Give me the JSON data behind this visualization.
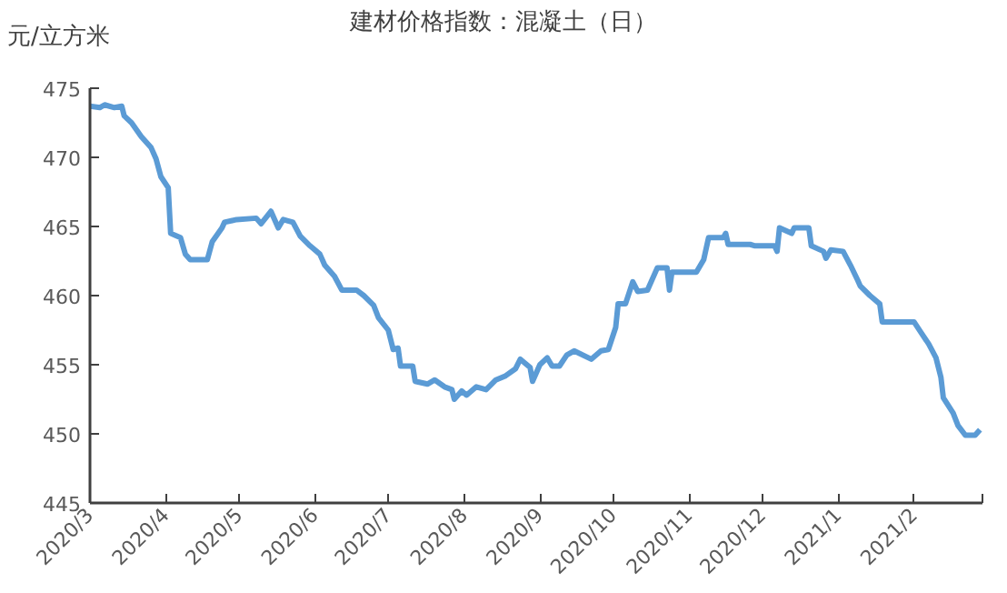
{
  "chart_data": {
    "type": "line",
    "title": "建材价格指数：混凝土（日）",
    "ylabel": "元/立方米",
    "x": [
      "2020-03-01",
      "2020-03-05",
      "2020-03-07",
      "2020-03-11",
      "2020-03-14",
      "2020-03-15",
      "2020-03-18",
      "2020-03-22",
      "2020-03-26",
      "2020-03-28",
      "2020-03-30",
      "2020-04-02",
      "2020-04-03",
      "2020-04-07",
      "2020-04-09",
      "2020-04-11",
      "2020-04-18",
      "2020-04-20",
      "2020-04-24",
      "2020-04-25",
      "2020-04-30",
      "2020-05-08",
      "2020-05-10",
      "2020-05-14",
      "2020-05-17",
      "2020-05-19",
      "2020-05-23",
      "2020-05-26",
      "2020-05-30",
      "2020-06-03",
      "2020-06-05",
      "2020-06-09",
      "2020-06-12",
      "2020-06-18",
      "2020-06-21",
      "2020-06-25",
      "2020-06-27",
      "2020-07-01",
      "2020-07-03",
      "2020-07-05",
      "2020-07-06",
      "2020-07-11",
      "2020-07-12",
      "2020-07-17",
      "2020-07-20",
      "2020-07-24",
      "2020-07-27",
      "2020-07-28",
      "2020-07-31",
      "2020-08-02",
      "2020-08-06",
      "2020-08-10",
      "2020-08-14",
      "2020-08-18",
      "2020-08-22",
      "2020-08-24",
      "2020-08-28",
      "2020-08-29",
      "2020-09-01",
      "2020-09-04",
      "2020-09-06",
      "2020-09-09",
      "2020-09-12",
      "2020-09-15",
      "2020-09-22",
      "2020-09-26",
      "2020-09-29",
      "2020-10-02",
      "2020-10-03",
      "2020-10-06",
      "2020-10-09",
      "2020-10-11",
      "2020-10-15",
      "2020-10-19",
      "2020-10-23",
      "2020-10-24",
      "2020-10-25",
      "2020-11-04",
      "2020-11-07",
      "2020-11-09",
      "2020-11-15",
      "2020-11-16",
      "2020-11-17",
      "2020-11-26",
      "2020-11-28",
      "2020-12-06",
      "2020-12-07",
      "2020-12-08",
      "2020-12-13",
      "2020-12-14",
      "2020-12-20",
      "2020-12-21",
      "2020-12-26",
      "2020-12-27",
      "2020-12-29",
      "2021-01-03",
      "2021-01-06",
      "2021-01-09",
      "2021-01-10",
      "2021-01-14",
      "2021-01-18",
      "2021-01-19",
      "2021-02-01",
      "2021-02-04",
      "2021-02-07",
      "2021-02-10",
      "2021-02-12",
      "2021-02-13",
      "2021-02-17",
      "2021-02-19",
      "2021-02-22",
      "2021-02-26",
      "2021-02-28"
    ],
    "series": [
      {
        "color": "#5b9bd5",
        "values": [
          473.7,
          473.6,
          473.8,
          473.6,
          473.7,
          473.0,
          472.5,
          471.5,
          470.7,
          469.9,
          468.6,
          467.8,
          464.5,
          464.2,
          463.0,
          462.6,
          462.6,
          463.9,
          464.9,
          465.3,
          465.5,
          465.6,
          465.2,
          466.1,
          464.9,
          465.5,
          465.3,
          464.3,
          463.6,
          463.0,
          462.2,
          461.4,
          460.4,
          460.4,
          460.0,
          459.3,
          458.4,
          457.5,
          456.1,
          456.2,
          454.9,
          454.9,
          453.8,
          453.6,
          453.9,
          453.4,
          453.2,
          452.5,
          453.1,
          452.8,
          453.4,
          453.2,
          453.9,
          454.2,
          454.7,
          455.4,
          454.8,
          453.8,
          455.0,
          455.5,
          454.9,
          454.9,
          455.7,
          456.0,
          455.4,
          456.0,
          456.1,
          457.7,
          459.4,
          459.4,
          461.0,
          460.3,
          460.4,
          462.0,
          462.0,
          460.4,
          461.7,
          461.7,
          462.6,
          464.2,
          464.2,
          464.5,
          463.7,
          463.7,
          463.6,
          463.6,
          463.2,
          464.9,
          464.5,
          464.9,
          464.9,
          463.6,
          463.2,
          462.7,
          463.3,
          463.2,
          462.2,
          461.1,
          460.7,
          460.0,
          459.4,
          458.1,
          458.1,
          457.3,
          456.5,
          455.5,
          454.1,
          452.6,
          451.5,
          450.6,
          449.9,
          449.9,
          450.3
        ]
      }
    ],
    "xlim": [
      "2020-03-01",
      "2021-03-01"
    ],
    "xticks": [
      {
        "value": "2020-03-01",
        "label": "2020/3"
      },
      {
        "value": "2020-04-01",
        "label": "2020/4"
      },
      {
        "value": "2020-05-01",
        "label": "2020/5"
      },
      {
        "value": "2020-06-01",
        "label": "2020/6"
      },
      {
        "value": "2020-07-01",
        "label": "2020/7"
      },
      {
        "value": "2020-08-01",
        "label": "2020/8"
      },
      {
        "value": "2020-09-01",
        "label": "2020/9"
      },
      {
        "value": "2020-10-01",
        "label": "2020/10"
      },
      {
        "value": "2020-11-01",
        "label": "2020/11"
      },
      {
        "value": "2020-12-01",
        "label": "2020/12"
      },
      {
        "value": "2021-01-01",
        "label": "2021/1"
      },
      {
        "value": "2021-02-01",
        "label": "2021/2"
      },
      {
        "value": "2021-03-01",
        "label": null
      }
    ],
    "ylim": [
      445,
      475
    ],
    "yticks": [
      445,
      450,
      455,
      460,
      465,
      470,
      475
    ],
    "grid": false,
    "marker": "none",
    "line_style": "solid"
  }
}
